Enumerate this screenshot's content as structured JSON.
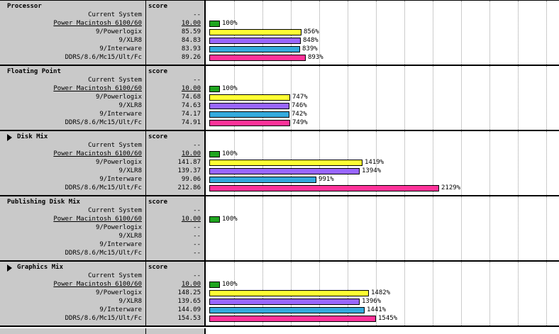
{
  "score_header": "score",
  "machines": [
    "Current System",
    "Power Macintosh 6100/60",
    "9/Powerlogix",
    "9/XLR8",
    "9/Interware",
    "DDRS/8.6/Mc15/Ult/Fc"
  ],
  "baseline_index": 1,
  "bar_colors": [
    "#9a9a9a",
    "#1fa51f",
    "#ffff33",
    "#9966ff",
    "#33aadd",
    "#ff3399"
  ],
  "sections": [
    {
      "title": "Processor",
      "has_triangle": false,
      "scores": [
        "--",
        "10.00",
        "85.59",
        "84.83",
        "83.93",
        "89.26"
      ],
      "percents": [
        null,
        100,
        856,
        848,
        839,
        893
      ],
      "percent_labels": [
        "",
        "100%",
        "856%",
        "848%",
        "839%",
        "893%"
      ]
    },
    {
      "title": "Floating Point",
      "has_triangle": false,
      "scores": [
        "--",
        "10.00",
        "74.68",
        "74.63",
        "74.17",
        "74.91"
      ],
      "percents": [
        null,
        100,
        747,
        746,
        742,
        749
      ],
      "percent_labels": [
        "",
        "100%",
        "747%",
        "746%",
        "742%",
        "749%"
      ]
    },
    {
      "title": "Disk Mix",
      "has_triangle": true,
      "scores": [
        "--",
        "10.00",
        "141.87",
        "139.37",
        "99.06",
        "212.86"
      ],
      "percents": [
        null,
        100,
        1419,
        1394,
        991,
        2129
      ],
      "percent_labels": [
        "",
        "100%",
        "1419%",
        "1394%",
        "991%",
        "2129%"
      ]
    },
    {
      "title": "Publishing Disk Mix",
      "has_triangle": false,
      "scores": [
        "--",
        "10.00",
        "--",
        "--",
        "--",
        "--"
      ],
      "percents": [
        null,
        100,
        null,
        null,
        null,
        null
      ],
      "percent_labels": [
        "",
        "100%",
        "",
        "",
        "",
        ""
      ]
    },
    {
      "title": "Graphics Mix",
      "has_triangle": true,
      "scores": [
        "--",
        "10.00",
        "148.25",
        "139.65",
        "144.09",
        "154.53"
      ],
      "percents": [
        null,
        100,
        1482,
        1396,
        1441,
        1545
      ],
      "percent_labels": [
        "",
        "100%",
        "1482%",
        "1396%",
        "1441%",
        "1545%"
      ]
    }
  ]
}
